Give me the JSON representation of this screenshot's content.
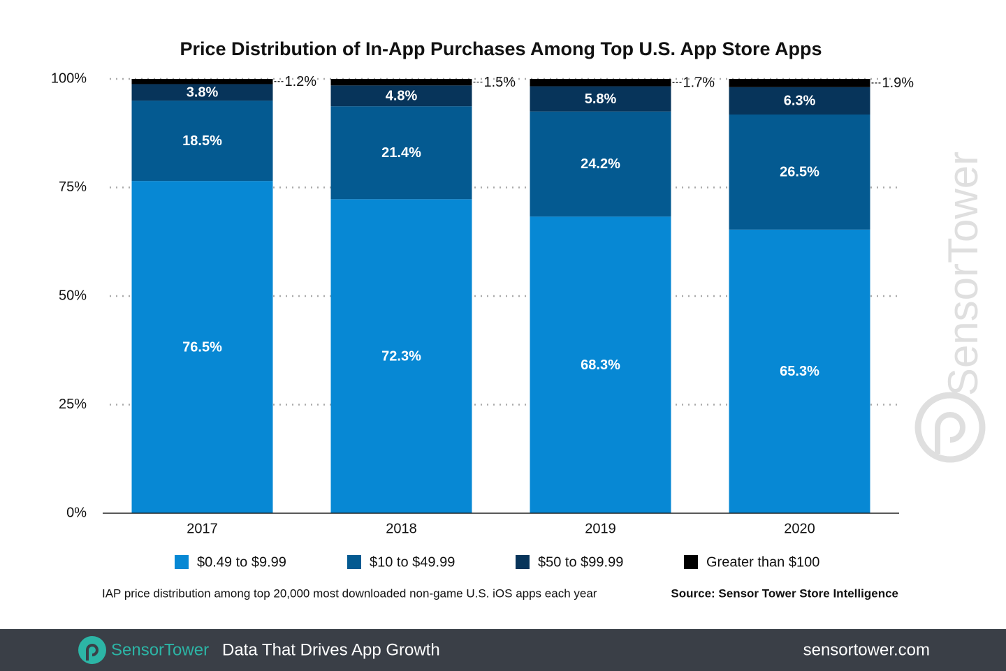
{
  "chart_data": {
    "type": "stacked_bar",
    "title": "Price Distribution of In-App Purchases Among Top U.S. App Store Apps",
    "categories": [
      "2017",
      "2018",
      "2019",
      "2020"
    ],
    "series": [
      {
        "name": "$0.49 to $9.99",
        "color": "#0788d4",
        "values": [
          76.5,
          72.3,
          68.3,
          65.3
        ],
        "value_labels": [
          "76.5%",
          "72.3%",
          "68.3%",
          "65.3%"
        ]
      },
      {
        "name": "$10 to $49.99",
        "color": "#045a91",
        "values": [
          18.5,
          21.4,
          24.2,
          26.5
        ],
        "value_labels": [
          "18.5%",
          "21.4%",
          "24.2%",
          "26.5%"
        ]
      },
      {
        "name": "$50 to $99.99",
        "color": "#07345a",
        "values": [
          3.8,
          4.8,
          5.8,
          6.3
        ],
        "value_labels": [
          "3.8%",
          "4.8%",
          "5.8%",
          "6.3%"
        ]
      },
      {
        "name": "Greater than $100",
        "color": "#000000",
        "values": [
          1.2,
          1.5,
          1.7,
          1.9
        ],
        "value_labels": [
          "1.2%",
          "1.5%",
          "1.7%",
          "1.9%"
        ]
      }
    ],
    "ylim": [
      0,
      100
    ],
    "yticks": [
      {
        "value": 0,
        "label": "0%"
      },
      {
        "value": 25,
        "label": "25%"
      },
      {
        "value": 50,
        "label": "50%"
      },
      {
        "value": 75,
        "label": "75%"
      },
      {
        "value": 100,
        "label": "100%"
      }
    ],
    "grid": true,
    "legend": "bottom",
    "note": "IAP price distribution among top 20,000 most downloaded non-game U.S. iOS apps each year",
    "source": "Source: Sensor Tower Store Intelligence"
  },
  "watermark": "SensorTower",
  "footer": {
    "brand": "SensorTower",
    "tagline": "Data That Drives App Growth",
    "url": "sensortower.com"
  }
}
